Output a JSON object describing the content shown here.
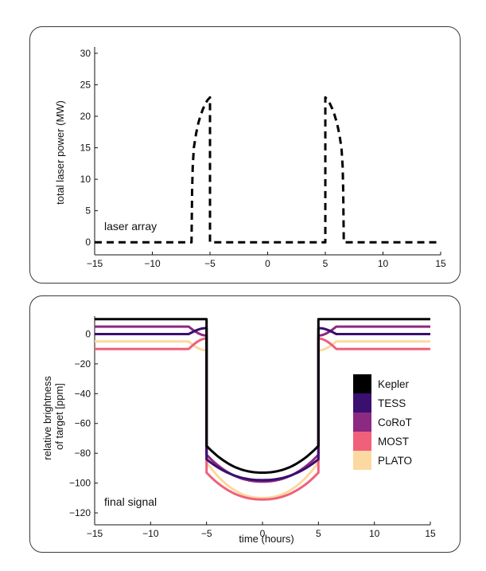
{
  "chart_data": [
    {
      "type": "line",
      "title": "",
      "xlabel": "",
      "ylabel": "total laser power (MW)",
      "annotation": "laser array",
      "xlim": [
        -15,
        15
      ],
      "ylim": [
        -2,
        31
      ],
      "xticks": [
        -15,
        -10,
        -5,
        0,
        5,
        10,
        15
      ],
      "xtick_labels": [
        "−15",
        "−10",
        "−5",
        "0",
        "5",
        "10",
        "15"
      ],
      "yticks": [
        0,
        5,
        10,
        15,
        20,
        25,
        30
      ],
      "ytick_labels": [
        "0",
        "5",
        "10",
        "15",
        "20",
        "25",
        "30"
      ],
      "series": [
        {
          "name": "laser power",
          "style": "dashed",
          "color": "#000000",
          "x": [
            -15,
            -6.6,
            -6.55,
            -6.5,
            -6.4,
            -6.2,
            -6.0,
            -5.8,
            -5.6,
            -5.4,
            -5.2,
            -5.05,
            -5.0,
            -5.0,
            5.0,
            5.0,
            5.05,
            5.2,
            5.4,
            5.6,
            5.8,
            6.0,
            6.2,
            6.4,
            6.5,
            6.55,
            6.6,
            15
          ],
          "y": [
            0,
            0,
            8,
            12,
            15,
            17.3,
            19,
            20.2,
            21.2,
            22,
            22.6,
            22.9,
            23,
            0,
            0,
            23,
            22.9,
            22.6,
            22,
            21.2,
            20.2,
            19,
            17.3,
            15,
            12,
            8,
            0,
            0
          ]
        }
      ]
    },
    {
      "type": "line",
      "title": "",
      "xlabel": "time (hours)",
      "ylabel": "relative brightness of target [ppm]",
      "ylabel_lines": [
        "relative brightness",
        "of target [ppm]"
      ],
      "annotation": "final signal",
      "xlim": [
        -15,
        15
      ],
      "ylim": [
        -128,
        12
      ],
      "xticks": [
        -15,
        -10,
        -5,
        0,
        5,
        10,
        15
      ],
      "xtick_labels": [
        "−15",
        "−10",
        "−5",
        "0",
        "5",
        "10",
        "15"
      ],
      "yticks": [
        0,
        -20,
        -40,
        -60,
        -80,
        -100,
        -120
      ],
      "ytick_labels": [
        "0",
        "−20",
        "−40",
        "−60",
        "−80",
        "−100",
        "−120"
      ],
      "legend_location": "right",
      "series": [
        {
          "name": "Kepler",
          "color": "#000000",
          "baseline": 10,
          "edge": -75,
          "center": -93,
          "bump": 0
        },
        {
          "name": "TESS",
          "color": "#3b0f6f",
          "baseline": 0,
          "edge": -84,
          "center": -98,
          "bump": 4
        },
        {
          "name": "CoRoT",
          "color": "#8c2981",
          "baseline": 5,
          "edge": -81,
          "center": -99,
          "bump": -6
        },
        {
          "name": "MOST",
          "color": "#f0607a",
          "baseline": -10,
          "edge": -93,
          "center": -111,
          "bump": 7
        },
        {
          "name": "PLATO",
          "color": "#fcd9a0",
          "baseline": -5,
          "edge": -86,
          "center": -110,
          "bump": -6
        }
      ]
    }
  ]
}
